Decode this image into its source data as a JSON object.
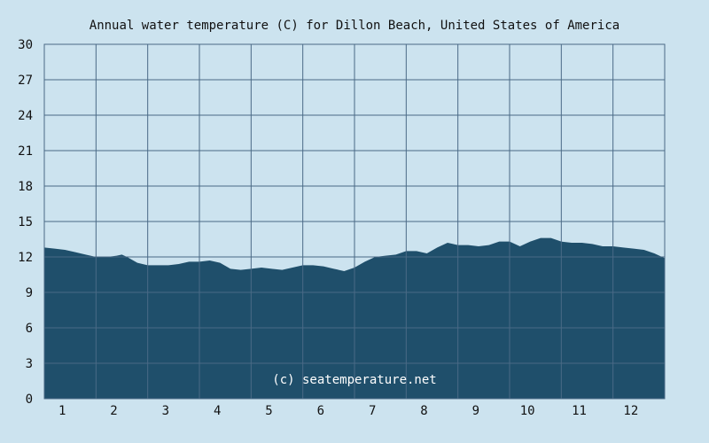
{
  "chart_data": {
    "type": "area",
    "title": "Annual water temperature (C) for Dillon Beach, United States of America",
    "xlabel": "",
    "ylabel": "",
    "ylim": [
      0,
      30
    ],
    "yticks": [
      0,
      3,
      6,
      9,
      12,
      15,
      18,
      21,
      24,
      27,
      30
    ],
    "xlim": [
      0.5,
      12.5
    ],
    "xticks": [
      1,
      2,
      3,
      4,
      5,
      6,
      7,
      8,
      9,
      10,
      11,
      12
    ],
    "grid": true,
    "watermark": "(c) seatemperature.net",
    "colors": {
      "background": "#cce3ef",
      "area": "#1f4f6b",
      "grid": "#4a6a86"
    },
    "x": [
      0.5,
      0.7,
      0.9,
      1.1,
      1.3,
      1.5,
      1.7,
      1.9,
      2.0,
      2.1,
      2.3,
      2.5,
      2.7,
      2.9,
      3.1,
      3.3,
      3.5,
      3.7,
      3.9,
      4.1,
      4.3,
      4.5,
      4.7,
      4.9,
      5.1,
      5.3,
      5.5,
      5.7,
      5.9,
      6.1,
      6.3,
      6.5,
      6.7,
      6.9,
      7.1,
      7.3,
      7.5,
      7.7,
      7.9,
      8.1,
      8.3,
      8.5,
      8.7,
      8.9,
      9.1,
      9.3,
      9.5,
      9.7,
      9.9,
      10.1,
      10.3,
      10.5,
      10.7,
      10.9,
      11.1,
      11.3,
      11.5,
      11.7,
      11.9,
      12.1,
      12.3,
      12.5
    ],
    "values": [
      12.8,
      12.7,
      12.6,
      12.4,
      12.2,
      12.0,
      12.0,
      12.1,
      12.2,
      12.0,
      11.5,
      11.3,
      11.3,
      11.3,
      11.4,
      11.6,
      11.6,
      11.7,
      11.5,
      11.0,
      10.9,
      11.0,
      11.1,
      11.0,
      10.9,
      11.1,
      11.3,
      11.3,
      11.2,
      11.0,
      10.8,
      11.1,
      11.6,
      12.0,
      12.1,
      12.2,
      12.5,
      12.5,
      12.3,
      12.8,
      13.2,
      13.0,
      13.0,
      12.9,
      13.0,
      13.3,
      13.3,
      12.9,
      13.3,
      13.6,
      13.6,
      13.3,
      13.2,
      13.2,
      13.1,
      12.9,
      12.9,
      12.8,
      12.7,
      12.6,
      12.3,
      11.9
    ]
  }
}
